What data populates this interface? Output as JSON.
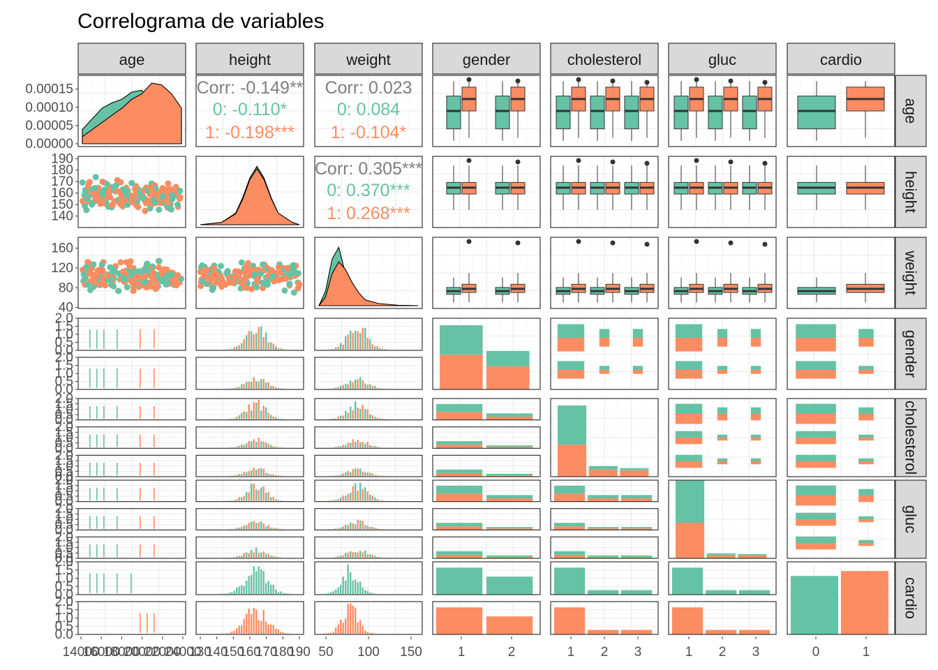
{
  "title": "Correlograma de variables",
  "colors": {
    "group0": "#66c2a5",
    "group1": "#fc8d62",
    "corr_overall": "#7f7f7f",
    "box_line": "#333333"
  },
  "chart_data": {
    "type": "pairs",
    "title": "Correlograma de variables",
    "variables": [
      "age",
      "height",
      "weight",
      "gender",
      "cholesterol",
      "gluc",
      "cardio"
    ],
    "color_by": "cardio",
    "group_levels": [
      "0",
      "1"
    ],
    "diagonal_densities": {
      "age": {
        "x_range": [
          14000,
          24000
        ],
        "y_ticks": [
          "0.00000",
          "0.00005",
          "0.00010",
          "0.00015"
        ],
        "y_range": [
          0,
          0.00018
        ],
        "x": [
          14000,
          15000,
          16000,
          17000,
          18000,
          19000,
          20000,
          21000,
          22000,
          23000,
          24000
        ],
        "group0": [
          4e-05,
          7e-05,
          0.0001,
          0.000115,
          0.000125,
          0.000145,
          0.00015,
          0.00011,
          9.5e-05,
          8e-05,
          6e-05
        ],
        "group1": [
          2e-05,
          4e-05,
          6e-05,
          8e-05,
          0.0001,
          0.000125,
          0.00014,
          0.00017,
          0.000165,
          0.00014,
          0.0001
        ]
      },
      "height": {
        "x_range": [
          125,
          195
        ],
        "x": [
          125,
          140,
          150,
          155,
          160,
          165,
          170,
          175,
          180,
          190,
          195
        ],
        "group0": [
          0.0,
          0.003,
          0.015,
          0.035,
          0.06,
          0.075,
          0.06,
          0.035,
          0.015,
          0.003,
          0.0
        ],
        "group1": [
          0.0,
          0.003,
          0.014,
          0.033,
          0.058,
          0.072,
          0.058,
          0.034,
          0.015,
          0.003,
          0.0
        ]
      },
      "weight": {
        "x_range": [
          40,
          190
        ],
        "x": [
          40,
          50,
          60,
          70,
          80,
          90,
          100,
          110,
          130,
          160,
          190
        ],
        "group0": [
          0.0,
          0.01,
          0.032,
          0.04,
          0.022,
          0.01,
          0.005,
          0.002,
          0.0008,
          0.0002,
          0.0
        ],
        "group1": [
          0.0,
          0.006,
          0.022,
          0.03,
          0.025,
          0.016,
          0.009,
          0.004,
          0.0015,
          0.0003,
          0.0
        ]
      }
    },
    "correlations": [
      {
        "pair": [
          "age",
          "height"
        ],
        "overall": "Corr: -0.149**",
        "group0": "0: -0.110*",
        "group1": "1: -0.198***"
      },
      {
        "pair": [
          "age",
          "weight"
        ],
        "overall": "Corr: 0.023",
        "group0": "0: 0.084",
        "group1": "1: -0.104*"
      },
      {
        "pair": [
          "height",
          "weight"
        ],
        "overall": "Corr: 0.305***",
        "group0": "0: 0.370***",
        "group1": "1: 0.268***"
      }
    ],
    "scatter_axes": {
      "height": {
        "y_ticks": [
          "140",
          "150",
          "160",
          "170",
          "180",
          "190"
        ],
        "y_range": [
          130,
          192
        ]
      },
      "weight": {
        "y_ticks": [
          "40",
          "80",
          "120",
          "160"
        ],
        "y_range": [
          38,
          182
        ]
      }
    },
    "boxplots": {
      "age_by_cardio": [
        {
          "group": "0",
          "q1": 16000,
          "median": 19000,
          "q3": 21500,
          "min": 14000,
          "max": 24000
        },
        {
          "group": "1",
          "q1": 19000,
          "median": 21000,
          "q3": 23000,
          "min": 14500,
          "max": 24000
        }
      ],
      "height_by_cardio": [
        {
          "group": "0",
          "q1": 159,
          "median": 165,
          "q3": 170,
          "min": 144,
          "max": 186
        },
        {
          "group": "1",
          "q1": 159,
          "median": 165,
          "q3": 170,
          "min": 144,
          "max": 186
        }
      ],
      "weight_by_cardio": [
        {
          "group": "0",
          "q1": 63,
          "median": 70,
          "q3": 78,
          "min": 45,
          "max": 100
        },
        {
          "group": "1",
          "q1": 67,
          "median": 75,
          "q3": 85,
          "min": 45,
          "max": 110
        }
      ]
    },
    "bottom_axes": {
      "age": [
        "14000",
        "16000",
        "18000",
        "20000",
        "22000",
        "24000"
      ],
      "height": [
        "130",
        "140",
        "150",
        "160",
        "170",
        "180",
        "190"
      ],
      "weight": [
        "50",
        "100",
        "150"
      ],
      "gender": [
        "1",
        "2"
      ],
      "cholesterol": [
        "1",
        "2",
        "3"
      ],
      "gluc": [
        "1",
        "2",
        "3"
      ],
      "cardio": [
        "0",
        "1"
      ]
    },
    "bottom_axes_labels": {
      "age": [
        "14000",
        "16000",
        "18000",
        "20000",
        "22000",
        "24000"
      ],
      "height": [
        "130",
        "140",
        "150",
        "160",
        "170",
        "180",
        "190"
      ]
    },
    "facet_hist_y_ticks": [
      "0.0",
      "0.5",
      "1.0",
      "1.5",
      "2.0"
    ],
    "categorical_counts": {
      "gender": {
        "levels": [
          "1",
          "2"
        ],
        "group0": [
          0.46,
          0.24
        ],
        "group1": [
          0.54,
          0.36
        ]
      },
      "cholesterol": {
        "levels": [
          "1",
          "2",
          "3"
        ],
        "group0": [
          0.55,
          0.05,
          0.03
        ],
        "group1": [
          0.45,
          0.1,
          0.09
        ]
      },
      "gluc": {
        "levels": [
          "1",
          "2",
          "3"
        ],
        "group0": [
          0.6,
          0.02,
          0.02
        ],
        "group1": [
          0.5,
          0.05,
          0.04
        ]
      },
      "cardio": {
        "levels": [
          "0",
          "1"
        ],
        "counts": [
          0.48,
          0.52
        ]
      }
    },
    "legend": "none",
    "grid": true
  }
}
